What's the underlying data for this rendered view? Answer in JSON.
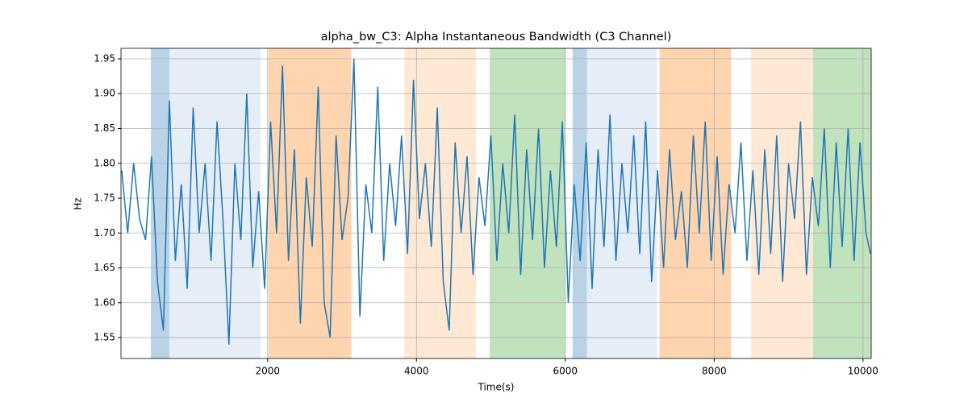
{
  "chart_data": {
    "type": "line",
    "title": "alpha_bw_C3: Alpha Instantaneous Bandwidth (C3 Channel)",
    "x_label": "Time(s)",
    "y_label": "Hz",
    "xlim": [
      30,
      10110
    ],
    "ylim": [
      1.52,
      1.965
    ],
    "xticks": [
      2000,
      4000,
      6000,
      8000,
      10000
    ],
    "yticks": [
      1.55,
      {
        "value": 1.6,
        "label": "1.60"
      },
      1.65,
      {
        "value": 1.7,
        "label": "1.70"
      },
      1.75,
      {
        "value": 1.8,
        "label": "1.80"
      },
      1.85,
      {
        "value": 1.9,
        "label": "1.90"
      },
      1.95
    ],
    "grid": true,
    "spans": [
      {
        "start": 432,
        "end": 681,
        "color": "#b8d3e8"
      },
      {
        "start": 681,
        "end": 1903,
        "color": "#e5edf7"
      },
      {
        "start": 2011,
        "end": 3124,
        "color": "#ffd5b0"
      },
      {
        "start": 3838,
        "end": 4800,
        "color": "#ffe9d4"
      },
      {
        "start": 4984,
        "end": 6000,
        "color": "#c0e2bd"
      },
      {
        "start": 6097,
        "end": 6292,
        "color": "#b8d3e8"
      },
      {
        "start": 6292,
        "end": 7232,
        "color": "#e5edf7"
      },
      {
        "start": 7265,
        "end": 8227,
        "color": "#ffd5b0"
      },
      {
        "start": 8497,
        "end": 9330,
        "color": "#ffe9d4"
      },
      {
        "start": 9330,
        "end": 10108,
        "color": "#c0e2bd"
      }
    ],
    "x": [
      40,
      120,
      200,
      280,
      360,
      440,
      520,
      600,
      680,
      760,
      840,
      920,
      1000,
      1080,
      1160,
      1240,
      1320,
      1400,
      1480,
      1560,
      1640,
      1720,
      1800,
      1880,
      1960,
      2040,
      2120,
      2200,
      2280,
      2360,
      2440,
      2520,
      2600,
      2680,
      2760,
      2840,
      2920,
      3000,
      3080,
      3160,
      3240,
      3320,
      3400,
      3480,
      3560,
      3640,
      3720,
      3800,
      3880,
      3960,
      4040,
      4120,
      4200,
      4280,
      4360,
      4440,
      4520,
      4600,
      4680,
      4760,
      4840,
      4920,
      5000,
      5080,
      5160,
      5240,
      5320,
      5400,
      5480,
      5560,
      5640,
      5720,
      5800,
      5880,
      5960,
      6040,
      6120,
      6200,
      6280,
      6360,
      6440,
      6520,
      6600,
      6680,
      6760,
      6840,
      6920,
      7000,
      7080,
      7160,
      7240,
      7320,
      7400,
      7480,
      7560,
      7640,
      7720,
      7800,
      7880,
      7960,
      8040,
      8120,
      8200,
      8280,
      8360,
      8440,
      8520,
      8600,
      8680,
      8760,
      8840,
      8920,
      9000,
      9080,
      9160,
      9240,
      9320,
      9400,
      9480,
      9560,
      9640,
      9720,
      9800,
      9880,
      9960,
      10040,
      10100
    ],
    "series": [
      {
        "name": "alpha_bw_C3",
        "color": "#1f77b4",
        "values": [
          1.79,
          1.7,
          1.8,
          1.72,
          1.69,
          1.81,
          1.63,
          1.56,
          1.89,
          1.66,
          1.77,
          1.62,
          1.88,
          1.7,
          1.8,
          1.66,
          1.86,
          1.72,
          1.54,
          1.8,
          1.69,
          1.9,
          1.65,
          1.76,
          1.62,
          1.86,
          1.7,
          1.94,
          1.66,
          1.82,
          1.57,
          1.78,
          1.68,
          1.91,
          1.6,
          1.55,
          1.84,
          1.69,
          1.75,
          1.95,
          1.58,
          1.77,
          1.7,
          1.91,
          1.66,
          1.8,
          1.71,
          1.84,
          1.67,
          1.92,
          1.72,
          1.8,
          1.68,
          1.88,
          1.63,
          1.56,
          1.83,
          1.7,
          1.81,
          1.64,
          1.78,
          1.71,
          1.84,
          1.66,
          1.8,
          1.7,
          1.87,
          1.64,
          1.82,
          1.69,
          1.85,
          1.65,
          1.79,
          1.68,
          1.86,
          1.6,
          1.77,
          1.66,
          1.83,
          1.62,
          1.82,
          1.68,
          1.87,
          1.66,
          1.8,
          1.7,
          1.84,
          1.67,
          1.86,
          1.63,
          1.79,
          1.65,
          1.82,
          1.69,
          1.76,
          1.65,
          1.84,
          1.7,
          1.86,
          1.66,
          1.81,
          1.64,
          1.77,
          1.7,
          1.83,
          1.66,
          1.79,
          1.64,
          1.82,
          1.67,
          1.84,
          1.63,
          1.8,
          1.72,
          1.86,
          1.64,
          1.78,
          1.71,
          1.85,
          1.65,
          1.83,
          1.68,
          1.85,
          1.66,
          1.83,
          1.7,
          1.67
        ]
      }
    ]
  }
}
